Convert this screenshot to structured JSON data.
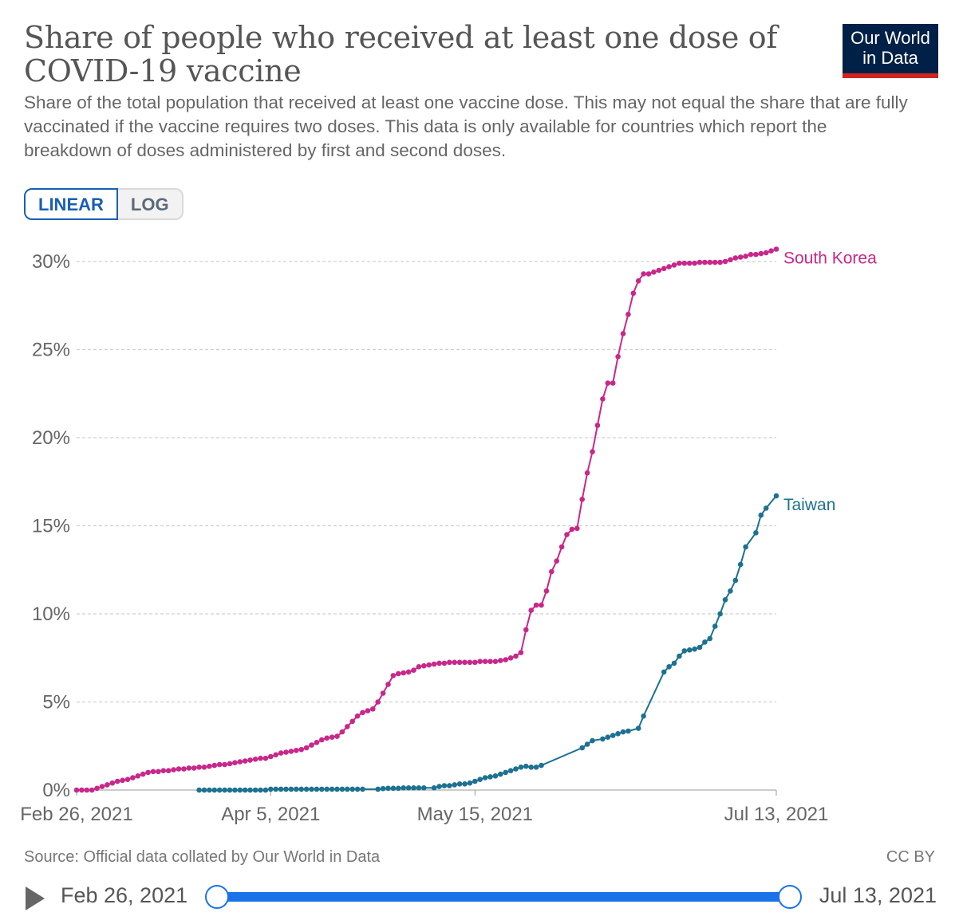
{
  "header": {
    "title": "Share of people who received at least one dose of COVID-19 vaccine",
    "subtitle": "Share of the total population that received at least one vaccine dose. This may not equal the share that are fully vaccinated if the vaccine requires two doses. This data is only available for countries which report the breakdown of doses administered by first and second doses.",
    "logo_line1": "Our World",
    "logo_line2": "in Data"
  },
  "scale_toggle": {
    "linear_label": "LINEAR",
    "log_label": "LOG",
    "selected": "LINEAR"
  },
  "colors": {
    "south_korea": "#c9278a",
    "taiwan": "#1d7191",
    "accent": "#1a73e8",
    "logo_bg": "#002147",
    "logo_bar": "#ce261e"
  },
  "chart_data": {
    "type": "line",
    "title": "Share of people who received at least one dose of COVID-19 vaccine",
    "xlabel": "",
    "ylabel": "",
    "xlim": [
      "2021-02-26",
      "2021-07-13"
    ],
    "ylim": [
      0,
      30
    ],
    "y_ticks": [
      0,
      5,
      10,
      15,
      20,
      25,
      30
    ],
    "y_tick_labels": [
      "0%",
      "5%",
      "10%",
      "15%",
      "20%",
      "25%",
      "30%"
    ],
    "x_ticks": [
      "2021-02-26",
      "2021-04-05",
      "2021-05-15",
      "2021-07-13"
    ],
    "x_tick_labels": [
      "Feb 26, 2021",
      "Apr 5, 2021",
      "May 15, 2021",
      "Jul 13, 2021"
    ],
    "grid": "horizontal dashed",
    "legend": "inline labels at line ends",
    "series": [
      {
        "name": "South Korea",
        "color": "#c9278a",
        "points": [
          [
            "2021-02-26",
            0.0
          ],
          [
            "2021-02-27",
            0.0
          ],
          [
            "2021-02-28",
            0.0
          ],
          [
            "2021-03-01",
            0.0
          ],
          [
            "2021-03-02",
            0.1
          ],
          [
            "2021-03-03",
            0.2
          ],
          [
            "2021-03-04",
            0.3
          ],
          [
            "2021-03-05",
            0.4
          ],
          [
            "2021-03-06",
            0.5
          ],
          [
            "2021-03-07",
            0.55
          ],
          [
            "2021-03-08",
            0.6
          ],
          [
            "2021-03-09",
            0.7
          ],
          [
            "2021-03-10",
            0.8
          ],
          [
            "2021-03-11",
            0.9
          ],
          [
            "2021-03-12",
            1.0
          ],
          [
            "2021-03-13",
            1.05
          ],
          [
            "2021-03-14",
            1.05
          ],
          [
            "2021-03-15",
            1.1
          ],
          [
            "2021-03-16",
            1.1
          ],
          [
            "2021-03-17",
            1.15
          ],
          [
            "2021-03-18",
            1.2
          ],
          [
            "2021-03-19",
            1.2
          ],
          [
            "2021-03-20",
            1.25
          ],
          [
            "2021-03-21",
            1.25
          ],
          [
            "2021-03-22",
            1.3
          ],
          [
            "2021-03-23",
            1.3
          ],
          [
            "2021-03-24",
            1.35
          ],
          [
            "2021-03-25",
            1.4
          ],
          [
            "2021-03-26",
            1.45
          ],
          [
            "2021-03-27",
            1.45
          ],
          [
            "2021-03-28",
            1.5
          ],
          [
            "2021-03-29",
            1.55
          ],
          [
            "2021-03-30",
            1.6
          ],
          [
            "2021-03-31",
            1.65
          ],
          [
            "2021-04-01",
            1.7
          ],
          [
            "2021-04-02",
            1.75
          ],
          [
            "2021-04-03",
            1.8
          ],
          [
            "2021-04-04",
            1.8
          ],
          [
            "2021-04-05",
            1.9
          ],
          [
            "2021-04-06",
            2.0
          ],
          [
            "2021-04-07",
            2.1
          ],
          [
            "2021-04-08",
            2.15
          ],
          [
            "2021-04-09",
            2.2
          ],
          [
            "2021-04-10",
            2.25
          ],
          [
            "2021-04-11",
            2.3
          ],
          [
            "2021-04-12",
            2.4
          ],
          [
            "2021-04-13",
            2.55
          ],
          [
            "2021-04-14",
            2.7
          ],
          [
            "2021-04-15",
            2.85
          ],
          [
            "2021-04-16",
            2.95
          ],
          [
            "2021-04-17",
            3.0
          ],
          [
            "2021-04-18",
            3.05
          ],
          [
            "2021-04-19",
            3.3
          ],
          [
            "2021-04-20",
            3.6
          ],
          [
            "2021-04-21",
            3.9
          ],
          [
            "2021-04-22",
            4.2
          ],
          [
            "2021-04-23",
            4.4
          ],
          [
            "2021-04-24",
            4.5
          ],
          [
            "2021-04-25",
            4.6
          ],
          [
            "2021-04-26",
            5.0
          ],
          [
            "2021-04-27",
            5.5
          ],
          [
            "2021-04-28",
            6.0
          ],
          [
            "2021-04-29",
            6.5
          ],
          [
            "2021-04-30",
            6.6
          ],
          [
            "2021-05-01",
            6.65
          ],
          [
            "2021-05-02",
            6.7
          ],
          [
            "2021-05-03",
            6.8
          ],
          [
            "2021-05-04",
            7.0
          ],
          [
            "2021-05-05",
            7.05
          ],
          [
            "2021-05-06",
            7.1
          ],
          [
            "2021-05-07",
            7.15
          ],
          [
            "2021-05-08",
            7.2
          ],
          [
            "2021-05-09",
            7.2
          ],
          [
            "2021-05-10",
            7.25
          ],
          [
            "2021-05-11",
            7.25
          ],
          [
            "2021-05-12",
            7.25
          ],
          [
            "2021-05-13",
            7.25
          ],
          [
            "2021-05-14",
            7.25
          ],
          [
            "2021-05-15",
            7.25
          ],
          [
            "2021-05-16",
            7.3
          ],
          [
            "2021-05-17",
            7.3
          ],
          [
            "2021-05-18",
            7.3
          ],
          [
            "2021-05-19",
            7.3
          ],
          [
            "2021-05-20",
            7.35
          ],
          [
            "2021-05-21",
            7.4
          ],
          [
            "2021-05-22",
            7.5
          ],
          [
            "2021-05-23",
            7.6
          ],
          [
            "2021-05-24",
            7.8
          ],
          [
            "2021-05-25",
            9.1
          ],
          [
            "2021-05-26",
            10.2
          ],
          [
            "2021-05-27",
            10.5
          ],
          [
            "2021-05-28",
            10.5
          ],
          [
            "2021-05-29",
            11.3
          ],
          [
            "2021-05-30",
            12.4
          ],
          [
            "2021-05-31",
            13.0
          ],
          [
            "2021-06-01",
            13.8
          ],
          [
            "2021-06-02",
            14.5
          ],
          [
            "2021-06-03",
            14.8
          ],
          [
            "2021-06-04",
            14.85
          ],
          [
            "2021-06-05",
            16.5
          ],
          [
            "2021-06-06",
            18.0
          ],
          [
            "2021-06-07",
            19.2
          ],
          [
            "2021-06-08",
            20.7
          ],
          [
            "2021-06-09",
            22.2
          ],
          [
            "2021-06-10",
            23.1
          ],
          [
            "2021-06-11",
            23.1
          ],
          [
            "2021-06-12",
            24.6
          ],
          [
            "2021-06-13",
            25.9
          ],
          [
            "2021-06-14",
            27.0
          ],
          [
            "2021-06-15",
            28.2
          ],
          [
            "2021-06-16",
            28.9
          ],
          [
            "2021-06-17",
            29.3
          ],
          [
            "2021-06-18",
            29.3
          ],
          [
            "2021-06-19",
            29.4
          ],
          [
            "2021-06-20",
            29.5
          ],
          [
            "2021-06-21",
            29.6
          ],
          [
            "2021-06-22",
            29.7
          ],
          [
            "2021-06-23",
            29.8
          ],
          [
            "2021-06-24",
            29.9
          ],
          [
            "2021-06-25",
            29.9
          ],
          [
            "2021-06-26",
            29.9
          ],
          [
            "2021-06-27",
            29.9
          ],
          [
            "2021-06-28",
            29.95
          ],
          [
            "2021-06-29",
            29.95
          ],
          [
            "2021-06-30",
            29.95
          ],
          [
            "2021-07-01",
            29.95
          ],
          [
            "2021-07-02",
            29.95
          ],
          [
            "2021-07-03",
            30.0
          ],
          [
            "2021-07-04",
            30.1
          ],
          [
            "2021-07-05",
            30.2
          ],
          [
            "2021-07-06",
            30.25
          ],
          [
            "2021-07-07",
            30.3
          ],
          [
            "2021-07-08",
            30.4
          ],
          [
            "2021-07-09",
            30.4
          ],
          [
            "2021-07-10",
            30.45
          ],
          [
            "2021-07-11",
            30.5
          ],
          [
            "2021-07-12",
            30.6
          ],
          [
            "2021-07-13",
            30.7
          ]
        ]
      },
      {
        "name": "Taiwan",
        "color": "#1d7191",
        "points": [
          [
            "2021-03-22",
            0.0
          ],
          [
            "2021-03-23",
            0.0
          ],
          [
            "2021-03-24",
            0.0
          ],
          [
            "2021-03-25",
            0.0
          ],
          [
            "2021-03-26",
            0.0
          ],
          [
            "2021-03-27",
            0.0
          ],
          [
            "2021-03-28",
            0.0
          ],
          [
            "2021-03-29",
            0.0
          ],
          [
            "2021-03-30",
            0.0
          ],
          [
            "2021-03-31",
            0.0
          ],
          [
            "2021-04-01",
            0.0
          ],
          [
            "2021-04-02",
            0.0
          ],
          [
            "2021-04-03",
            0.0
          ],
          [
            "2021-04-04",
            0.0
          ],
          [
            "2021-04-05",
            0.05
          ],
          [
            "2021-04-06",
            0.05
          ],
          [
            "2021-04-07",
            0.05
          ],
          [
            "2021-04-08",
            0.05
          ],
          [
            "2021-04-09",
            0.05
          ],
          [
            "2021-04-10",
            0.05
          ],
          [
            "2021-04-11",
            0.05
          ],
          [
            "2021-04-12",
            0.05
          ],
          [
            "2021-04-13",
            0.05
          ],
          [
            "2021-04-14",
            0.05
          ],
          [
            "2021-04-15",
            0.05
          ],
          [
            "2021-04-16",
            0.05
          ],
          [
            "2021-04-17",
            0.05
          ],
          [
            "2021-04-18",
            0.05
          ],
          [
            "2021-04-19",
            0.05
          ],
          [
            "2021-04-20",
            0.05
          ],
          [
            "2021-04-21",
            0.05
          ],
          [
            "2021-04-22",
            0.05
          ],
          [
            "2021-04-23",
            0.05
          ],
          [
            "2021-04-26",
            0.05
          ],
          [
            "2021-04-27",
            0.08
          ],
          [
            "2021-04-28",
            0.1
          ],
          [
            "2021-04-29",
            0.1
          ],
          [
            "2021-04-30",
            0.1
          ],
          [
            "2021-05-01",
            0.12
          ],
          [
            "2021-05-02",
            0.12
          ],
          [
            "2021-05-03",
            0.12
          ],
          [
            "2021-05-04",
            0.12
          ],
          [
            "2021-05-05",
            0.12
          ],
          [
            "2021-05-07",
            0.12
          ],
          [
            "2021-05-08",
            0.2
          ],
          [
            "2021-05-09",
            0.25
          ],
          [
            "2021-05-10",
            0.25
          ],
          [
            "2021-05-11",
            0.3
          ],
          [
            "2021-05-12",
            0.35
          ],
          [
            "2021-05-13",
            0.35
          ],
          [
            "2021-05-14",
            0.4
          ],
          [
            "2021-05-15",
            0.5
          ],
          [
            "2021-05-16",
            0.6
          ],
          [
            "2021-05-17",
            0.7
          ],
          [
            "2021-05-18",
            0.75
          ],
          [
            "2021-05-19",
            0.8
          ],
          [
            "2021-05-20",
            0.9
          ],
          [
            "2021-05-21",
            1.0
          ],
          [
            "2021-05-22",
            1.1
          ],
          [
            "2021-05-23",
            1.2
          ],
          [
            "2021-05-24",
            1.3
          ],
          [
            "2021-05-25",
            1.35
          ],
          [
            "2021-05-26",
            1.3
          ],
          [
            "2021-05-27",
            1.3
          ],
          [
            "2021-05-28",
            1.4
          ],
          [
            "2021-06-05",
            2.4
          ],
          [
            "2021-06-06",
            2.6
          ],
          [
            "2021-06-07",
            2.8
          ],
          [
            "2021-06-09",
            2.9
          ],
          [
            "2021-06-10",
            3.0
          ],
          [
            "2021-06-11",
            3.1
          ],
          [
            "2021-06-12",
            3.2
          ],
          [
            "2021-06-13",
            3.3
          ],
          [
            "2021-06-14",
            3.35
          ],
          [
            "2021-06-16",
            3.5
          ],
          [
            "2021-06-17",
            4.2
          ],
          [
            "2021-06-21",
            6.7
          ],
          [
            "2021-06-22",
            7.0
          ],
          [
            "2021-06-23",
            7.2
          ],
          [
            "2021-06-24",
            7.6
          ],
          [
            "2021-06-25",
            7.9
          ],
          [
            "2021-06-26",
            7.95
          ],
          [
            "2021-06-27",
            8.0
          ],
          [
            "2021-06-28",
            8.1
          ],
          [
            "2021-06-29",
            8.4
          ],
          [
            "2021-06-30",
            8.6
          ],
          [
            "2021-07-01",
            9.3
          ],
          [
            "2021-07-02",
            10.0
          ],
          [
            "2021-07-03",
            10.8
          ],
          [
            "2021-07-04",
            11.3
          ],
          [
            "2021-07-05",
            11.9
          ],
          [
            "2021-07-06",
            12.8
          ],
          [
            "2021-07-07",
            13.8
          ],
          [
            "2021-07-09",
            14.6
          ],
          [
            "2021-07-10",
            15.6
          ],
          [
            "2021-07-11",
            16.0
          ],
          [
            "2021-07-13",
            16.7
          ]
        ]
      }
    ]
  },
  "footer": {
    "source": "Source: Official data collated by Our World in Data",
    "license": "CC BY"
  },
  "timeline": {
    "start_label": "Feb 26, 2021",
    "end_label": "Jul 13, 2021"
  }
}
